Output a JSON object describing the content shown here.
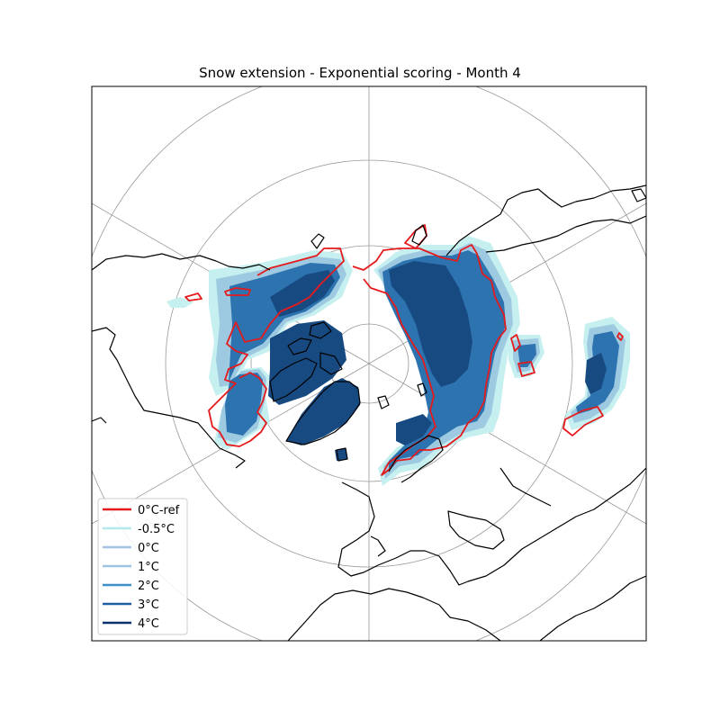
{
  "title": "Snow extension - Exponential scoring - Month 4",
  "colors": {
    "ref": "#e41a1c",
    "m05": "#c6eff0",
    "c0": "#a6c9e4",
    "c1": "#9ecae1",
    "c2": "#4292c6",
    "c3": "#2c73b0",
    "c4": "#184a82",
    "land": "#000000",
    "grid": "#999999"
  },
  "legend": [
    {
      "label": "0°C-ref",
      "color": "#e41a1c"
    },
    {
      "label": "-0.5°C",
      "color": "#b5e8ea"
    },
    {
      "label": "0°C",
      "color": "#a6c2e0"
    },
    {
      "label": "1°C",
      "color": "#9dc3e1"
    },
    {
      "label": "2°C",
      "color": "#3f8fc8"
    },
    {
      "label": "3°C",
      "color": "#1f5fa3"
    },
    {
      "label": "4°C",
      "color": "#08306b"
    }
  ]
}
